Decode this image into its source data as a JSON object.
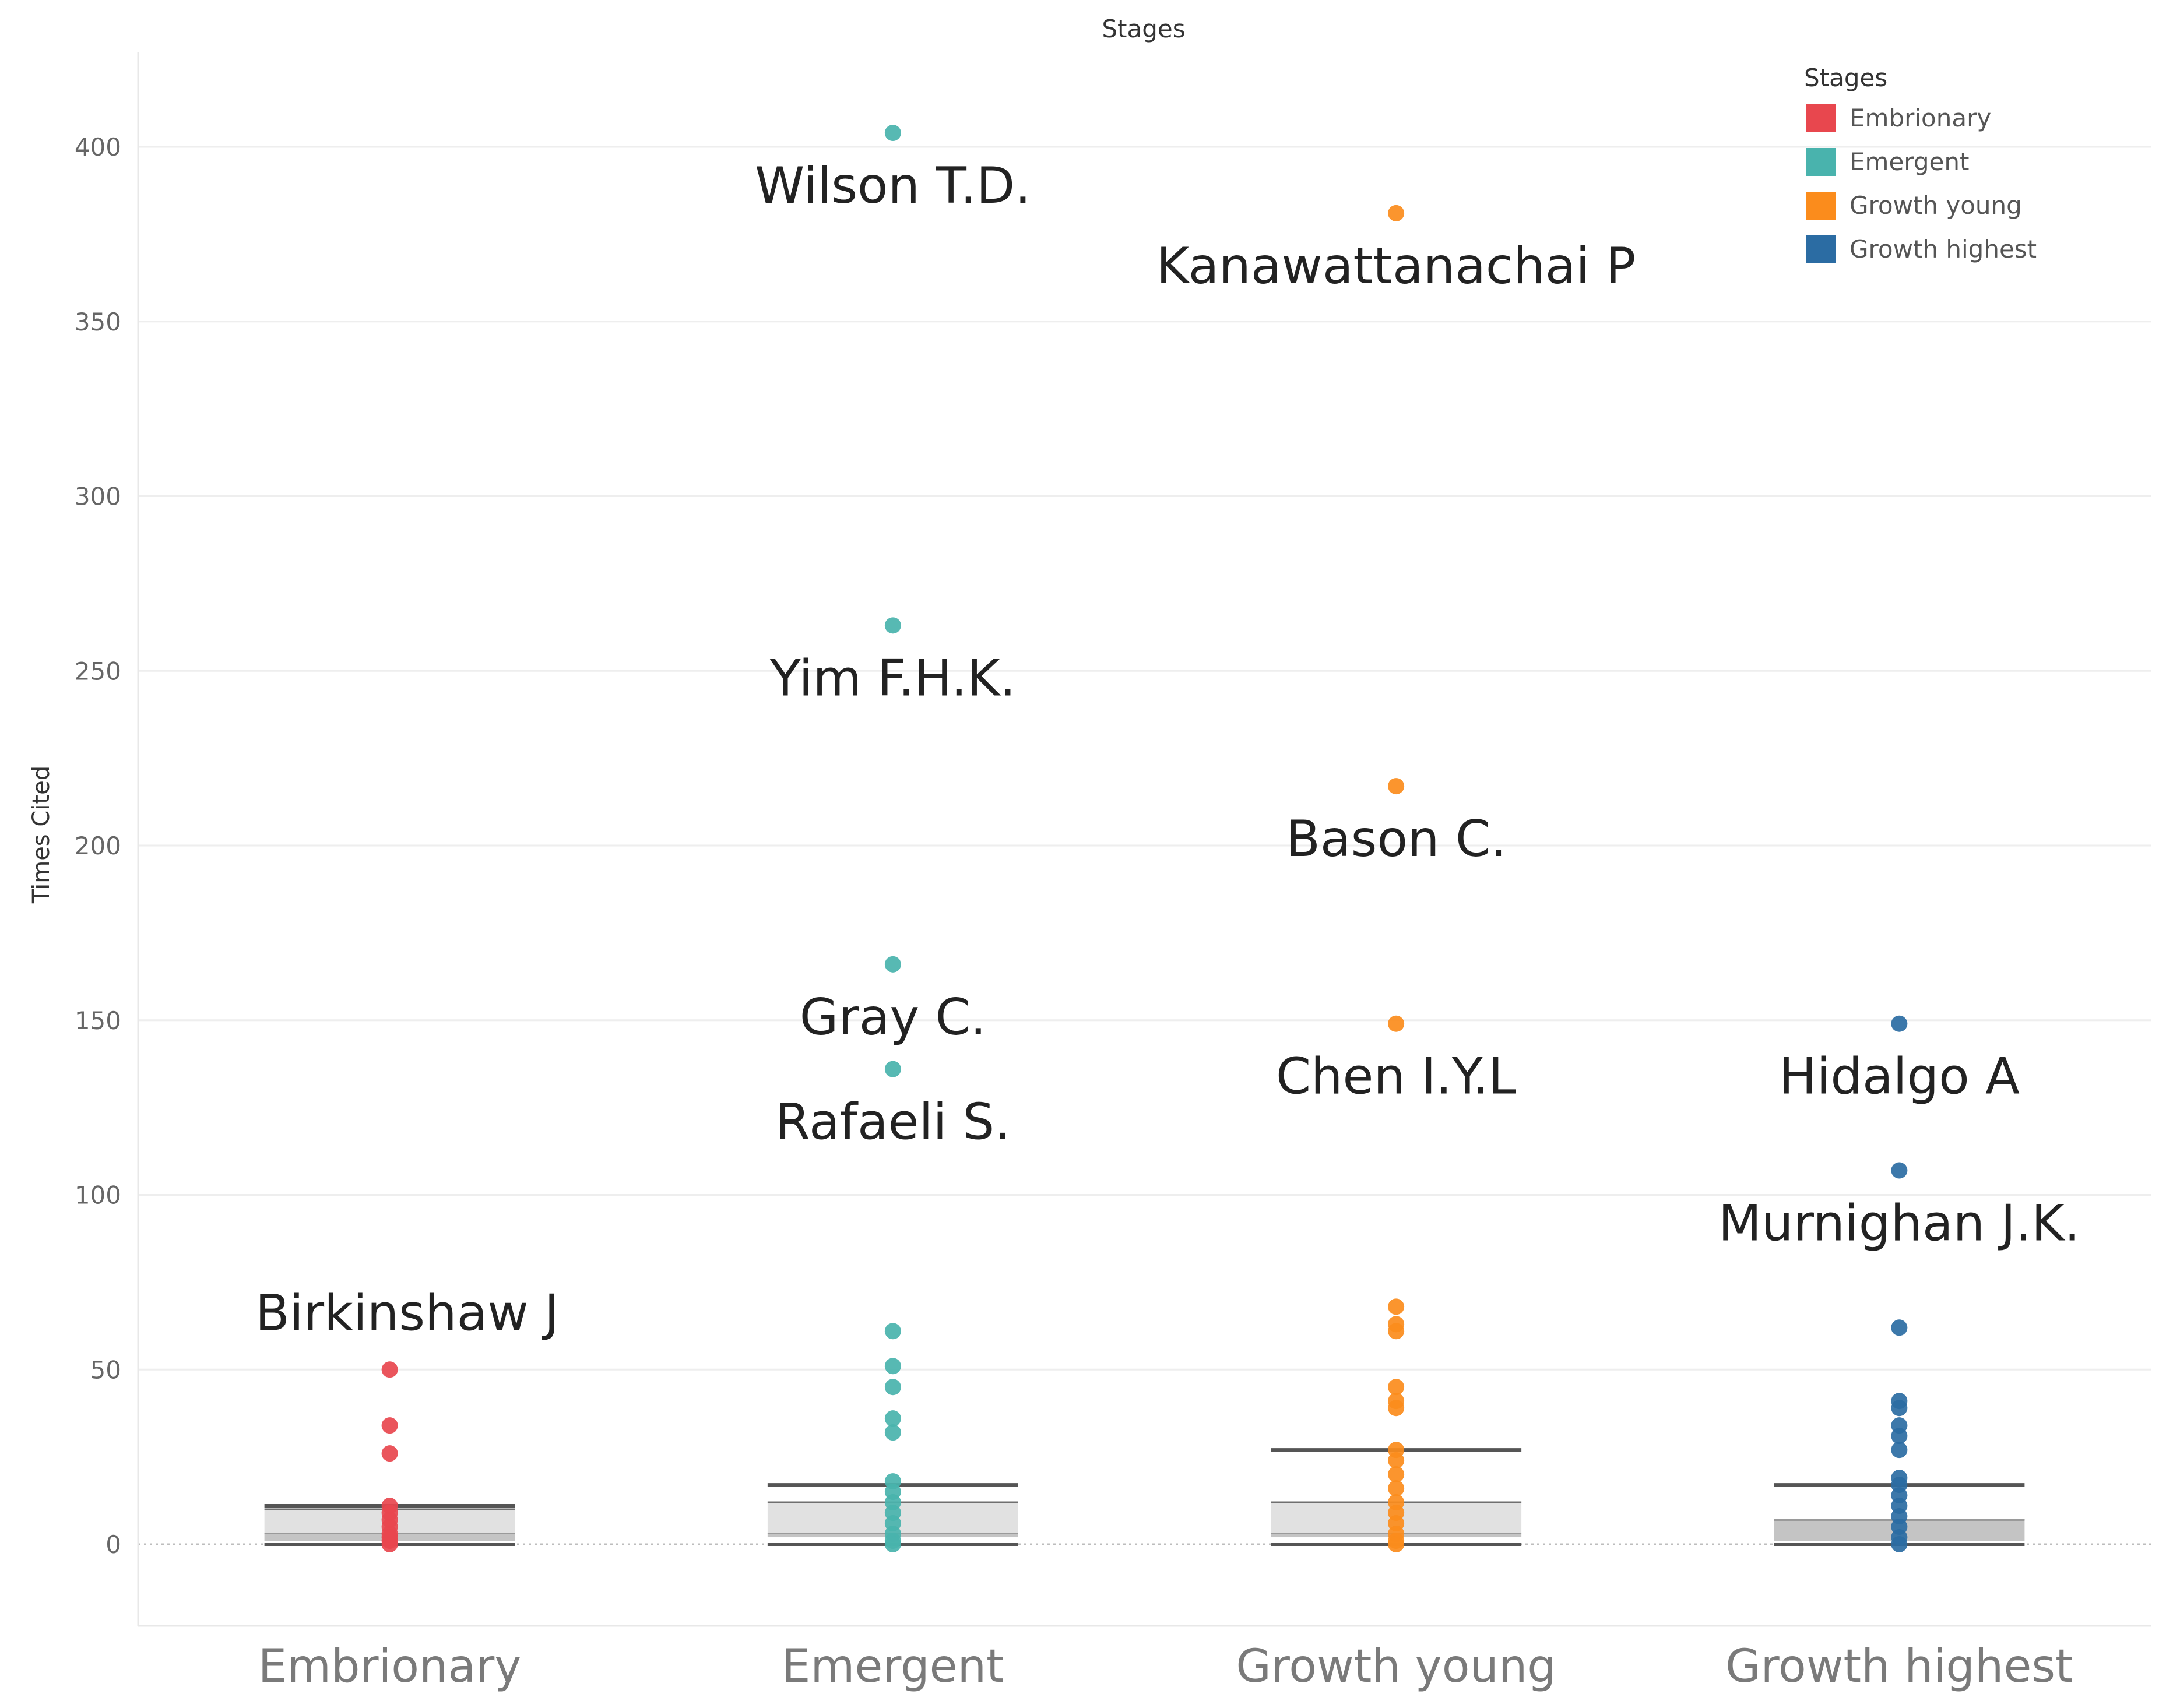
{
  "chart_data": {
    "type": "scatter",
    "title": "Stages",
    "xlabel": "",
    "ylabel": "Times Cited",
    "ylim": [
      -25,
      425
    ],
    "yticks": [
      0,
      50,
      100,
      150,
      200,
      250,
      300,
      350,
      400
    ],
    "categories": [
      "Embrionary",
      "Emergent",
      "Growth young",
      "Growth highest"
    ],
    "legend": {
      "title": "Stages",
      "position": "top-right",
      "items": [
        {
          "label": "Embrionary",
          "color": "#e8474e"
        },
        {
          "label": "Emergent",
          "color": "#49b3ad"
        },
        {
          "label": "Growth young",
          "color": "#fb8c1c"
        },
        {
          "label": "Growth highest",
          "color": "#2b6ca3"
        }
      ]
    },
    "series": [
      {
        "name": "Embrionary",
        "color": "#e8474e",
        "values": [
          50,
          34,
          26,
          11,
          9,
          7,
          5,
          3,
          2,
          1,
          0
        ],
        "box": {
          "lower_whisker": 0,
          "q1": 1,
          "median": 3,
          "q3": 10,
          "upper_whisker": 11
        }
      },
      {
        "name": "Emergent",
        "color": "#49b3ad",
        "values": [
          404,
          263,
          166,
          136,
          61,
          51,
          45,
          36,
          32,
          18,
          15,
          12,
          9,
          6,
          3,
          1,
          0
        ],
        "box": {
          "lower_whisker": 0,
          "q1": 2,
          "median": 3,
          "q3": 12,
          "upper_whisker": 17
        }
      },
      {
        "name": "Growth young",
        "color": "#fb8c1c",
        "values": [
          381,
          217,
          149,
          68,
          63,
          61,
          45,
          41,
          39,
          27,
          24,
          20,
          16,
          12,
          9,
          6,
          3,
          1,
          0
        ],
        "box": {
          "lower_whisker": 0,
          "q1": 2,
          "median": 3,
          "q3": 12,
          "upper_whisker": 27
        }
      },
      {
        "name": "Growth highest",
        "color": "#2b6ca3",
        "values": [
          149,
          107,
          62,
          41,
          39,
          34,
          31,
          27,
          19,
          17,
          14,
          11,
          8,
          5,
          2,
          0
        ],
        "box": {
          "lower_whisker": 0,
          "q1": 1,
          "median": 7,
          "q3": 7,
          "upper_whisker": 17
        }
      }
    ],
    "annotations": [
      {
        "text": "Wilson T.D.",
        "category": "Emergent",
        "value": 404
      },
      {
        "text": "Yim F.H.K.",
        "category": "Emergent",
        "value": 263
      },
      {
        "text": "Gray C.",
        "category": "Emergent",
        "value": 166
      },
      {
        "text": "Rafaeli S.",
        "category": "Emergent",
        "value": 136
      },
      {
        "text": "Kanawattanachai P",
        "category": "Growth young",
        "value": 381
      },
      {
        "text": "Bason C.",
        "category": "Growth young",
        "value": 217
      },
      {
        "text": "Chen I.Y.L",
        "category": "Growth young",
        "value": 149
      },
      {
        "text": "Hidalgo A",
        "category": "Growth highest",
        "value": 149
      },
      {
        "text": "Murnighan J.K.",
        "category": "Growth highest",
        "value": 107
      },
      {
        "text": "Birkinshaw J",
        "category": "Embrionary",
        "value": 50
      }
    ]
  }
}
